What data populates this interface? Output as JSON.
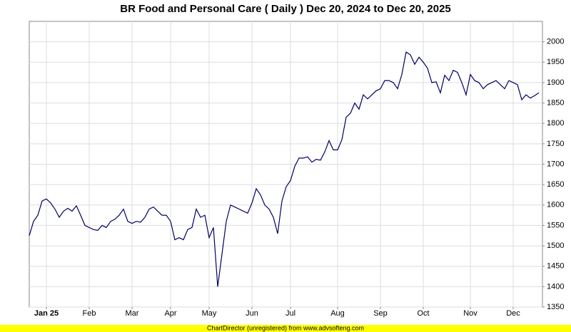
{
  "chart_data": {
    "type": "line",
    "title": "BR Food and Personal Care ( Daily ) Dec 20, 2024 to Dec 20, 2025",
    "footer": "ChartDirector (unregistered) from www.advsofteng.com",
    "categories": [
      null,
      null,
      null,
      null,
      "Jan 25",
      null,
      null,
      null,
      null,
      null,
      null,
      null,
      null,
      null,
      "Feb",
      null,
      null,
      null,
      null,
      null,
      null,
      null,
      null,
      null,
      "Mar",
      null,
      null,
      null,
      null,
      null,
      null,
      null,
      null,
      "Apr",
      null,
      null,
      null,
      null,
      null,
      null,
      null,
      null,
      "May",
      null,
      null,
      null,
      null,
      null,
      null,
      null,
      null,
      null,
      "Jun",
      null,
      null,
      null,
      null,
      null,
      null,
      null,
      null,
      "Jul",
      null,
      null,
      null,
      null,
      null,
      null,
      null,
      null,
      null,
      null,
      "Aug",
      null,
      null,
      null,
      null,
      null,
      null,
      null,
      null,
      null,
      "Sep",
      null,
      null,
      null,
      null,
      null,
      null,
      null,
      null,
      null,
      "Oct",
      null,
      null,
      null,
      null,
      null,
      null,
      null,
      null,
      null,
      null,
      "Nov",
      null,
      null,
      null,
      null,
      null,
      null,
      null,
      null,
      null,
      "Dec",
      null,
      null,
      null,
      null,
      null,
      null
    ],
    "series": [
      {
        "color": "#000066",
        "values": [
          1525,
          1560,
          1575,
          1610,
          1615,
          1605,
          1590,
          1570,
          1585,
          1592,
          1585,
          1598,
          1575,
          1550,
          1545,
          1540,
          1538,
          1550,
          1545,
          1560,
          1565,
          1575,
          1590,
          1560,
          1555,
          1560,
          1558,
          1570,
          1590,
          1595,
          1585,
          1575,
          1575,
          1560,
          1515,
          1520,
          1515,
          1540,
          1545,
          1590,
          1570,
          1575,
          1520,
          1545,
          1400,
          1480,
          1560,
          1600,
          1595,
          1590,
          1585,
          1580,
          1605,
          1640,
          1625,
          1600,
          1590,
          1570,
          1530,
          1610,
          1645,
          1660,
          1695,
          1715,
          1715,
          1718,
          1705,
          1712,
          1710,
          1730,
          1758,
          1735,
          1735,
          1760,
          1815,
          1825,
          1850,
          1835,
          1870,
          1860,
          1870,
          1880,
          1885,
          1905,
          1905,
          1900,
          1885,
          1920,
          1975,
          1968,
          1945,
          1962,
          1950,
          1935,
          1900,
          1902,
          1875,
          1918,
          1905,
          1930,
          1925,
          1900,
          1870,
          1920,
          1905,
          1900,
          1885,
          1895,
          1900,
          1905,
          1895,
          1885,
          1905,
          1900,
          1895,
          1858,
          1870,
          1862,
          1868,
          1875
        ]
      }
    ],
    "ylim": [
      1350,
      2050
    ],
    "yticks": [
      1350,
      1400,
      1450,
      1500,
      1550,
      1600,
      1650,
      1700,
      1750,
      1800,
      1850,
      1900,
      1950,
      2000
    ],
    "grid": true
  }
}
